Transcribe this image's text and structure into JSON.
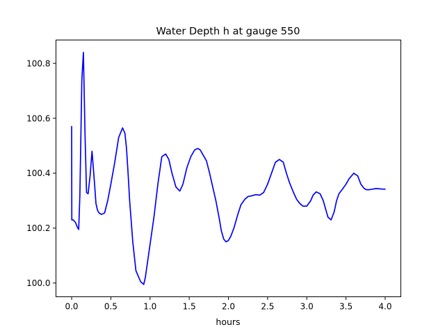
{
  "chart_data": {
    "type": "line",
    "title": "Water Depth h at gauge 550",
    "xlabel": "hours",
    "ylabel": "",
    "xlim": [
      -0.2,
      4.2
    ],
    "ylim": [
      99.95,
      100.885
    ],
    "xticks": [
      0.0,
      0.5,
      1.0,
      1.5,
      2.0,
      2.5,
      3.0,
      3.5,
      4.0
    ],
    "xtick_labels": [
      "0.0",
      "0.5",
      "1.0",
      "1.5",
      "2.0",
      "2.5",
      "3.0",
      "3.5",
      "4.0"
    ],
    "yticks": [
      100.0,
      100.2,
      100.4,
      100.6,
      100.8
    ],
    "ytick_labels": [
      "100.0",
      "100.2",
      "100.4",
      "100.6",
      "100.8"
    ],
    "grid": false,
    "series": [
      {
        "color": "#0000ff",
        "x": [
          0.0,
          0.002,
          0.02,
          0.05,
          0.07,
          0.09,
          0.105,
          0.13,
          0.15,
          0.17,
          0.19,
          0.21,
          0.235,
          0.26,
          0.29,
          0.31,
          0.33,
          0.35,
          0.38,
          0.42,
          0.46,
          0.5,
          0.55,
          0.6,
          0.65,
          0.68,
          0.7,
          0.72,
          0.74,
          0.78,
          0.82,
          0.85,
          0.88,
          0.92,
          0.94,
          0.97,
          1.0,
          1.05,
          1.1,
          1.15,
          1.2,
          1.24,
          1.28,
          1.33,
          1.38,
          1.42,
          1.47,
          1.52,
          1.57,
          1.61,
          1.64,
          1.67,
          1.72,
          1.76,
          1.8,
          1.84,
          1.88,
          1.91,
          1.94,
          1.97,
          2.0,
          2.03,
          2.07,
          2.12,
          2.16,
          2.21,
          2.25,
          2.3,
          2.35,
          2.4,
          2.45,
          2.5,
          2.55,
          2.6,
          2.65,
          2.7,
          2.74,
          2.78,
          2.83,
          2.87,
          2.91,
          2.95,
          3.0,
          3.05,
          3.08,
          3.12,
          3.17,
          3.21,
          3.24,
          3.27,
          3.31,
          3.35,
          3.38,
          3.41,
          3.45,
          3.5,
          3.54,
          3.6,
          3.65,
          3.69,
          3.73,
          3.76,
          3.8,
          3.84,
          3.88,
          3.93,
          3.97,
          4.0
        ],
        "y": [
          100.57,
          100.23,
          100.23,
          100.22,
          100.205,
          100.195,
          100.32,
          100.74,
          100.84,
          100.55,
          100.33,
          100.325,
          100.39,
          100.48,
          100.37,
          100.29,
          100.265,
          100.255,
          100.25,
          100.255,
          100.3,
          100.36,
          100.44,
          100.53,
          100.565,
          100.545,
          100.49,
          100.4,
          100.3,
          100.15,
          100.045,
          100.025,
          100.005,
          99.995,
          100.02,
          100.08,
          100.14,
          100.24,
          100.36,
          100.46,
          100.47,
          100.45,
          100.4,
          100.35,
          100.335,
          100.36,
          100.42,
          100.46,
          100.485,
          100.49,
          100.485,
          100.47,
          100.445,
          100.4,
          100.35,
          100.3,
          100.24,
          100.19,
          100.16,
          100.15,
          100.155,
          100.17,
          100.2,
          100.25,
          100.285,
          100.305,
          100.315,
          100.318,
          100.322,
          100.32,
          100.33,
          100.36,
          100.4,
          100.44,
          100.45,
          100.44,
          100.4,
          100.365,
          100.33,
          100.305,
          100.29,
          100.28,
          100.28,
          100.3,
          100.32,
          100.332,
          100.325,
          100.3,
          100.27,
          100.24,
          100.23,
          100.26,
          100.3,
          100.325,
          100.34,
          100.36,
          100.38,
          100.4,
          100.39,
          100.36,
          100.345,
          100.34,
          100.34,
          100.342,
          100.344,
          100.343,
          100.342,
          100.342
        ]
      }
    ]
  }
}
